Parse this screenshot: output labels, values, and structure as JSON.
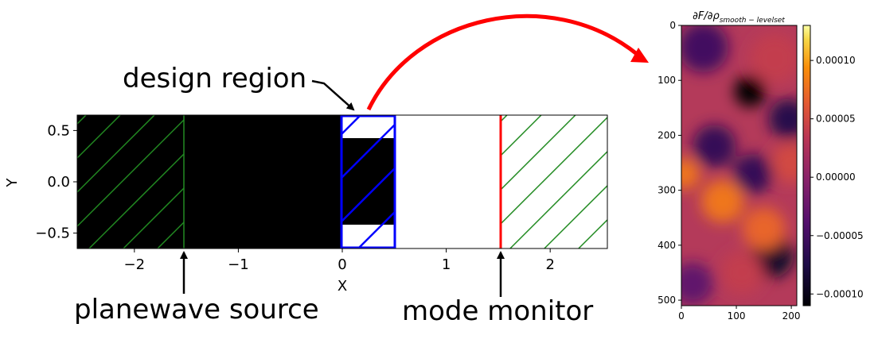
{
  "chart_data": [
    {
      "type": "diagram",
      "xlabel": "X",
      "ylabel": "Y",
      "xlim": [
        -2.55,
        2.55
      ],
      "ylim": [
        -0.65,
        0.65
      ],
      "xticks": [
        {
          "v": -2,
          "label": "−2"
        },
        {
          "v": -1,
          "label": "−1"
        },
        {
          "v": 0,
          "label": "0"
        },
        {
          "v": 1,
          "label": "1"
        },
        {
          "v": 2,
          "label": "2"
        }
      ],
      "yticks": [
        {
          "v": 0.5,
          "label": "0.5"
        },
        {
          "v": 0.0,
          "label": "0.0"
        },
        {
          "v": -0.5,
          "label": "−0.5"
        }
      ],
      "regions": {
        "black_fill_x": [
          -2.55,
          0.0
        ],
        "design_region_x": [
          0.0,
          0.5
        ],
        "design_black_y": [
          -0.4,
          0.4
        ],
        "source_x": -1.5,
        "monitor_x": 1.5,
        "pml_left_x": [
          -2.55,
          -1.5
        ],
        "pml_right_x": [
          1.5,
          2.55
        ]
      },
      "colors": {
        "pml": "#228B22",
        "design": "#0000ff",
        "monitor": "#ff0000",
        "fill": "#000000"
      }
    },
    {
      "type": "heatmap",
      "title": "∂F/∂ρ",
      "title_sub": "smooth − levelset",
      "xlim": [
        0,
        210
      ],
      "ylim": [
        510,
        0
      ],
      "xticks": [
        {
          "v": 0,
          "label": "0"
        },
        {
          "v": 100,
          "label": "100"
        },
        {
          "v": 200,
          "label": "200"
        }
      ],
      "yticks": [
        {
          "v": 0,
          "label": "0"
        },
        {
          "v": 100,
          "label": "100"
        },
        {
          "v": 200,
          "label": "200"
        },
        {
          "v": 300,
          "label": "300"
        },
        {
          "v": 400,
          "label": "400"
        },
        {
          "v": 500,
          "label": "500"
        }
      ],
      "colorbar": {
        "range": [
          -0.00011,
          0.00013
        ],
        "ticks": [
          {
            "v": 0.0001,
            "label": "0.00010"
          },
          {
            "v": 5e-05,
            "label": "0.00005"
          },
          {
            "v": 0.0,
            "label": "0.00000"
          },
          {
            "v": -5e-05,
            "label": "−0.00005"
          },
          {
            "v": -0.0001,
            "label": "−0.00010"
          }
        ],
        "colormap": "inferno"
      },
      "blobs": [
        {
          "x": 125,
          "y": 120,
          "v": -0.00011,
          "s": 22
        },
        {
          "x": 195,
          "y": 170,
          "v": -7e-05,
          "s": 28
        },
        {
          "x": 40,
          "y": 40,
          "v": -5e-05,
          "s": 35
        },
        {
          "x": 165,
          "y": 420,
          "v": -9e-05,
          "s": 30
        },
        {
          "x": 60,
          "y": 220,
          "v": -6e-05,
          "s": 30
        },
        {
          "x": 130,
          "y": 270,
          "v": -6e-05,
          "s": 28
        },
        {
          "x": 20,
          "y": 470,
          "v": -3e-05,
          "s": 30
        },
        {
          "x": 75,
          "y": 320,
          "v": 8e-05,
          "s": 30
        },
        {
          "x": 150,
          "y": 370,
          "v": 7e-05,
          "s": 30
        },
        {
          "x": 5,
          "y": 270,
          "v": 8e-05,
          "s": 22
        },
        {
          "x": 110,
          "y": 450,
          "v": 4e-05,
          "s": 30
        },
        {
          "x": 200,
          "y": 250,
          "v": 5e-05,
          "s": 28
        },
        {
          "x": 170,
          "y": 60,
          "v": 4e-05,
          "s": 35
        }
      ]
    }
  ],
  "annotations": {
    "design_region": "design region",
    "planewave_source": "planewave source",
    "mode_monitor": "mode monitor"
  }
}
